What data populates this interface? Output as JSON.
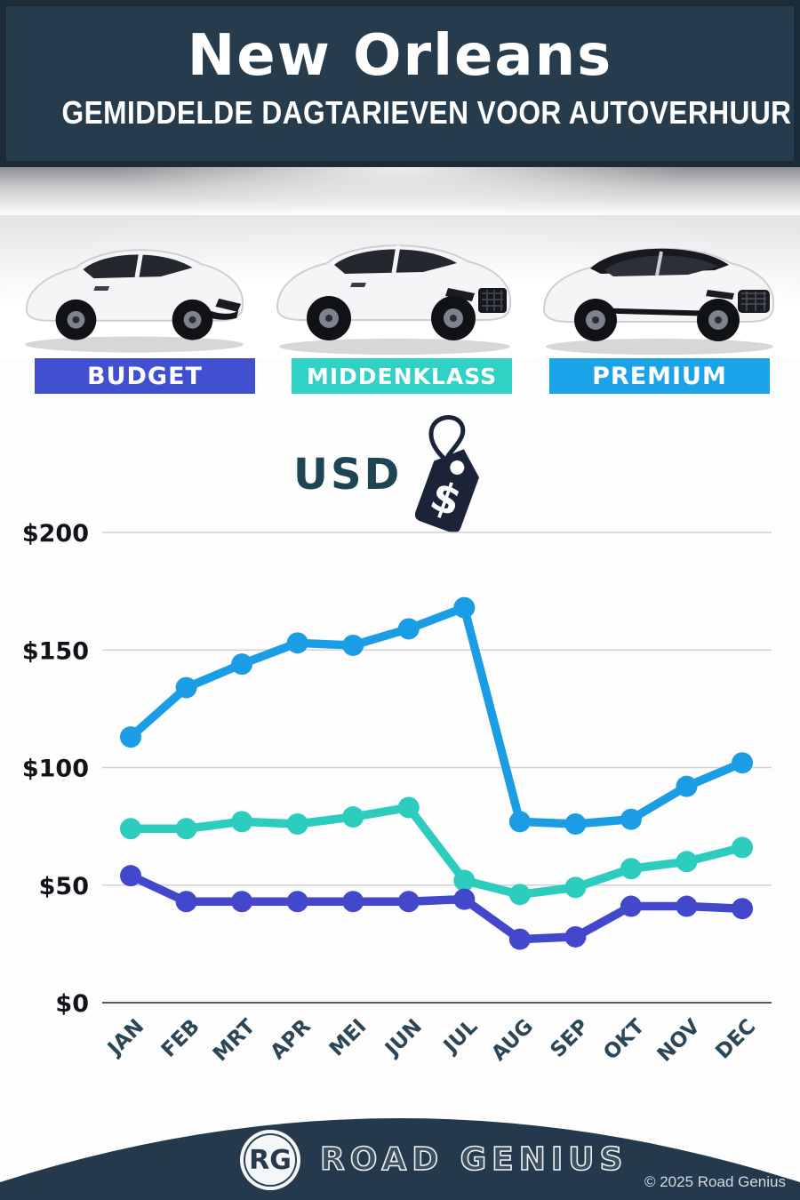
{
  "header": {
    "title": "New Orleans",
    "subtitle": "GEMIDDELDE DAGTARIEVEN VOOR AUTOVERHUUR"
  },
  "categories": [
    {
      "label": "BUDGET",
      "color": "#4150d0"
    },
    {
      "label": "MIDDENKLASS",
      "color": "#2fd2c4"
    },
    {
      "label": "PREMIUM",
      "color": "#1ba3e8"
    }
  ],
  "currency": {
    "label": "USD",
    "tag_symbol": "$"
  },
  "chart_data": {
    "type": "line",
    "categories": [
      "JAN",
      "FEB",
      "MRT",
      "APR",
      "MEI",
      "JUN",
      "JUL",
      "AUG",
      "SEP",
      "OKT",
      "NOV",
      "DEC"
    ],
    "series": [
      {
        "name": "PREMIUM",
        "color": "#1b9de6",
        "values": [
          113,
          134,
          144,
          153,
          152,
          159,
          168,
          77,
          76,
          78,
          92,
          102
        ]
      },
      {
        "name": "MIDDENKLASS",
        "color": "#2cccbe",
        "values": [
          74,
          74,
          77,
          76,
          79,
          83,
          52,
          46,
          49,
          57,
          60,
          66
        ]
      },
      {
        "name": "BUDGET",
        "color": "#4247cb",
        "values": [
          54,
          43,
          43,
          43,
          43,
          43,
          44,
          27,
          28,
          41,
          41,
          40
        ]
      }
    ],
    "yticks": [
      {
        "label": "$200",
        "value": 200
      },
      {
        "label": "$150",
        "value": 150
      },
      {
        "label": "$100",
        "value": 100
      },
      {
        "label": "$50",
        "value": 50
      },
      {
        "label": "$0",
        "value": 0
      }
    ],
    "ylim": [
      0,
      200
    ],
    "grid": true,
    "currency_unit": "USD"
  },
  "footer": {
    "logo_initials": "RG",
    "brand": "ROAD GENIUS",
    "copyright": "© 2025 Road Genius"
  }
}
